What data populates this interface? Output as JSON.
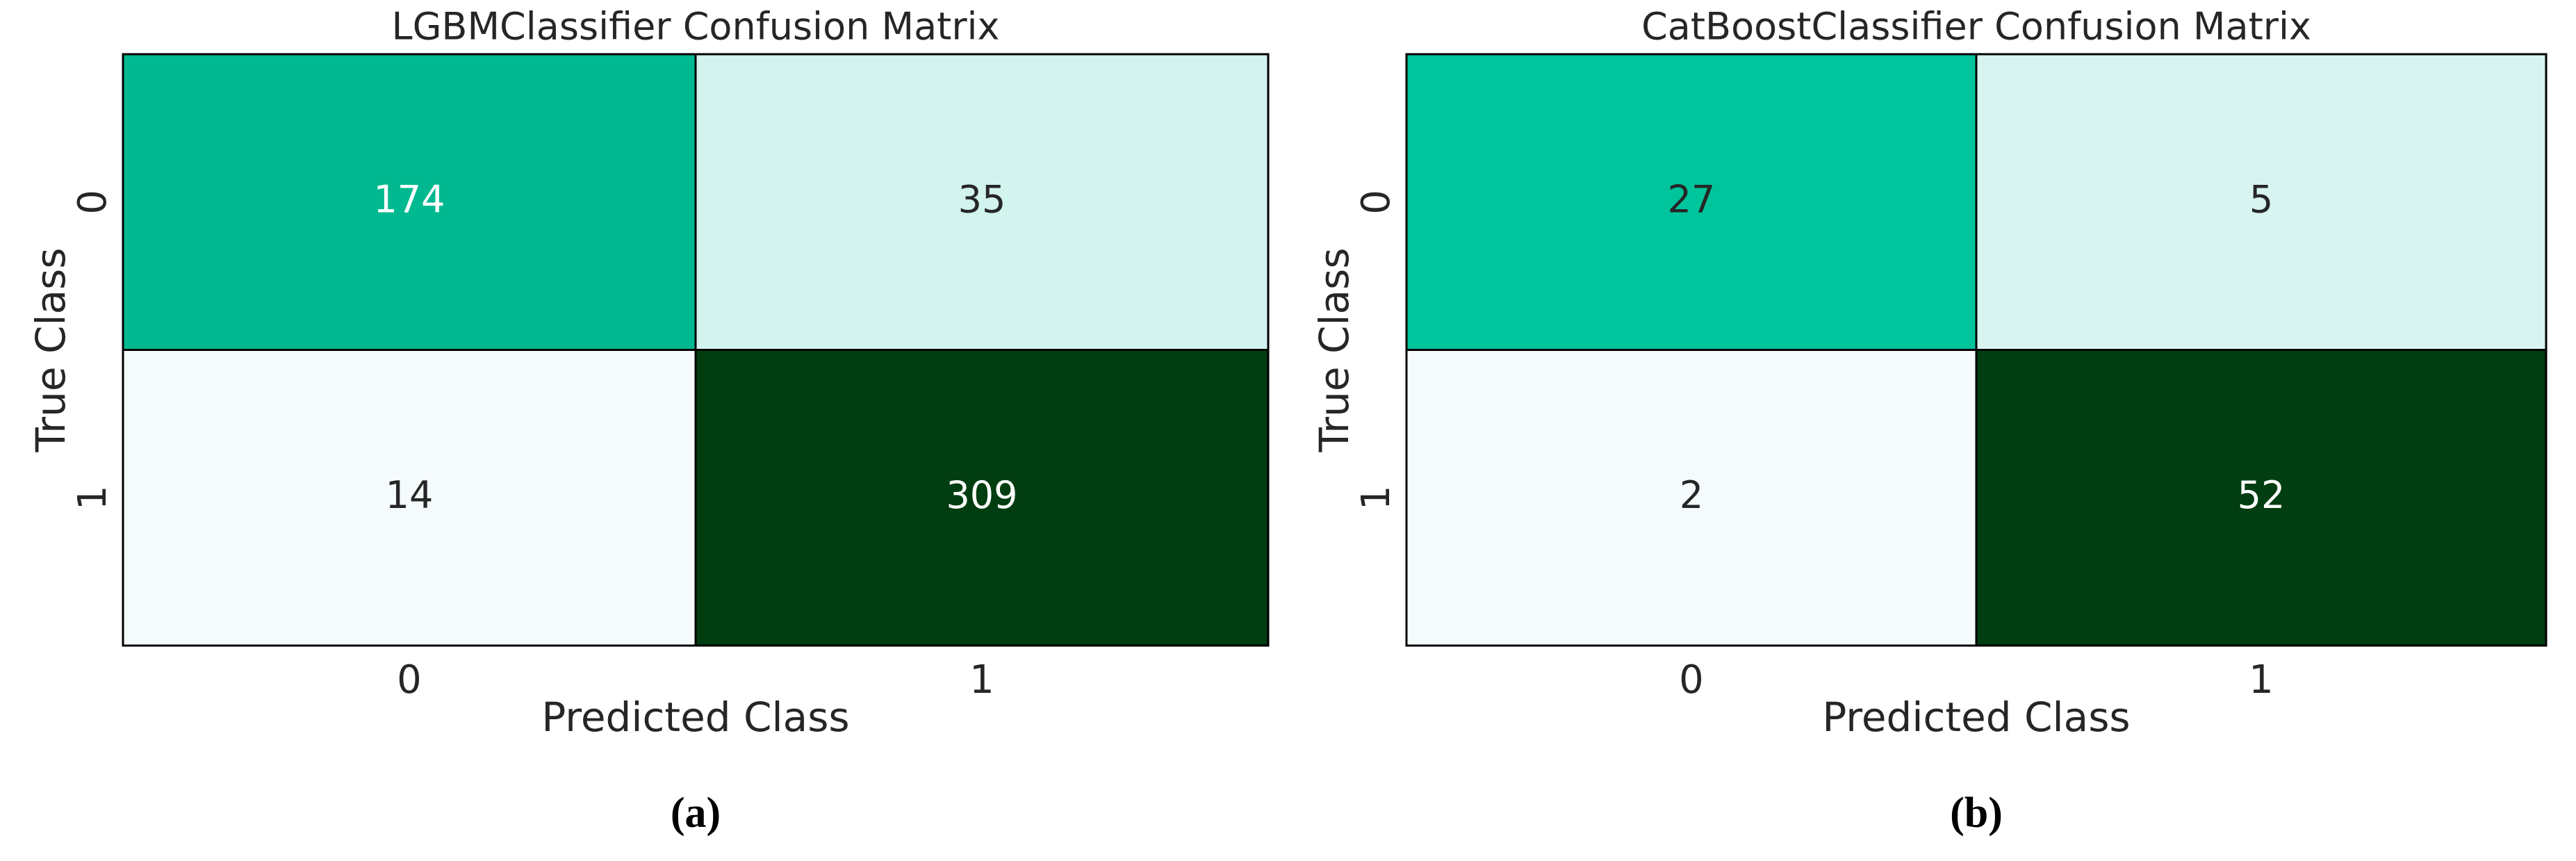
{
  "chart_data": [
    {
      "type": "heatmap",
      "title": "LGBMClassifier Confusion Matrix",
      "x_categories": [
        "0",
        "1"
      ],
      "y_categories": [
        "0",
        "1"
      ],
      "values": [
        [
          174,
          35
        ],
        [
          14,
          309
        ]
      ],
      "xlabel": "Predicted Class",
      "ylabel": "True Class",
      "colorscale": [
        "#f5fbfc",
        "#00c49c",
        "#003d10"
      ],
      "caption": "(a)"
    },
    {
      "type": "heatmap",
      "title": "CatBoostClassifier Confusion Matrix",
      "x_categories": [
        "0",
        "1"
      ],
      "y_categories": [
        "0",
        "1"
      ],
      "values": [
        [
          27,
          5
        ],
        [
          2,
          52
        ]
      ],
      "xlabel": "Predicted Class",
      "ylabel": "True Class",
      "colorscale": [
        "#f5fbfc",
        "#00c49c",
        "#003d10"
      ],
      "caption": "(b)"
    }
  ]
}
